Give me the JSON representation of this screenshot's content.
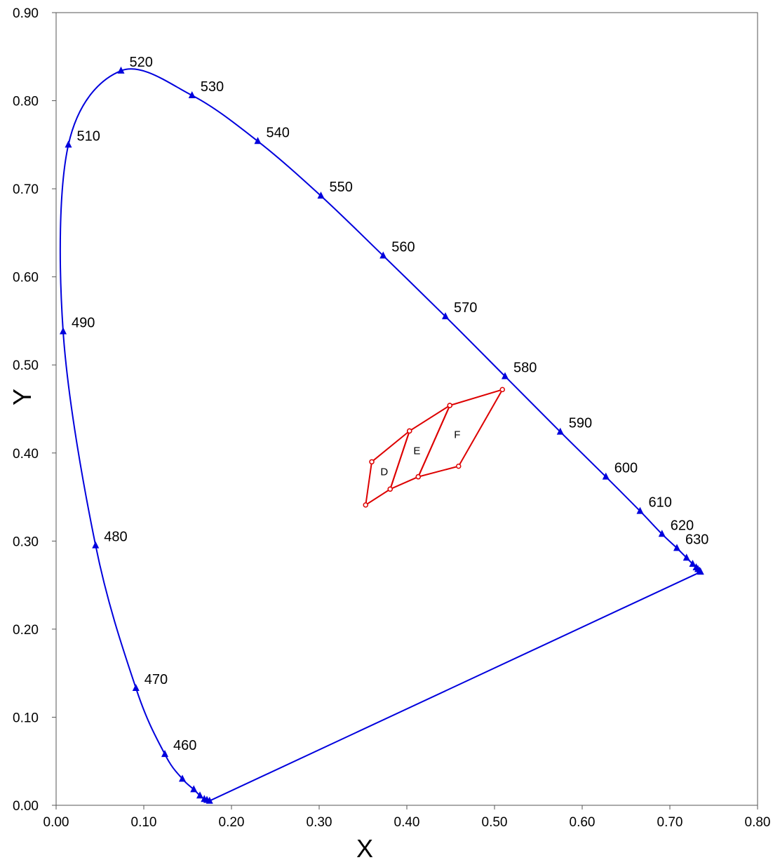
{
  "chart_data": {
    "type": "line",
    "title": "",
    "xlabel": "X",
    "ylabel": "Y",
    "xlim": [
      0.0,
      0.8
    ],
    "ylim": [
      0.0,
      0.9
    ],
    "x_ticks": [
      "0.00",
      "0.10",
      "0.20",
      "0.30",
      "0.40",
      "0.50",
      "0.60",
      "0.70",
      "0.80"
    ],
    "y_ticks": [
      "0.00",
      "0.10",
      "0.20",
      "0.30",
      "0.40",
      "0.50",
      "0.60",
      "0.70",
      "0.80",
      "0.90"
    ],
    "grid": false,
    "legend": "none",
    "series": [
      {
        "color": "#0000dd",
        "marker": "triangle",
        "points": [
          {
            "x": 0.175,
            "y": 0.005
          },
          {
            "x": 0.172,
            "y": 0.006
          },
          {
            "x": 0.169,
            "y": 0.007
          },
          {
            "x": 0.164,
            "y": 0.011
          },
          {
            "x": 0.157,
            "y": 0.018
          },
          {
            "x": 0.144,
            "y": 0.03
          },
          {
            "x": 0.124,
            "y": 0.058,
            "label": "460"
          },
          {
            "x": 0.091,
            "y": 0.133,
            "label": "470"
          },
          {
            "x": 0.045,
            "y": 0.295,
            "label": "480"
          },
          {
            "x": 0.008,
            "y": 0.538,
            "label": "490"
          },
          {
            "x": 0.014,
            "y": 0.75,
            "label": "510"
          },
          {
            "x": 0.074,
            "y": 0.834,
            "label": "520"
          },
          {
            "x": 0.155,
            "y": 0.806,
            "label": "530"
          },
          {
            "x": 0.23,
            "y": 0.754,
            "label": "540"
          },
          {
            "x": 0.302,
            "y": 0.692,
            "label": "550"
          },
          {
            "x": 0.373,
            "y": 0.624,
            "label": "560"
          },
          {
            "x": 0.444,
            "y": 0.555,
            "label": "570"
          },
          {
            "x": 0.512,
            "y": 0.487,
            "label": "580"
          },
          {
            "x": 0.575,
            "y": 0.424,
            "label": "590"
          },
          {
            "x": 0.627,
            "y": 0.373,
            "label": "600"
          },
          {
            "x": 0.666,
            "y": 0.334,
            "label": "610"
          },
          {
            "x": 0.691,
            "y": 0.308,
            "label": "620"
          },
          {
            "x": 0.708,
            "y": 0.292,
            "label": "630"
          },
          {
            "x": 0.719,
            "y": 0.281
          },
          {
            "x": 0.726,
            "y": 0.274
          },
          {
            "x": 0.73,
            "y": 0.27
          },
          {
            "x": 0.732,
            "y": 0.268
          },
          {
            "x": 0.734,
            "y": 0.266
          },
          {
            "x": 0.735,
            "y": 0.265
          }
        ]
      }
    ],
    "regions": [
      {
        "label": "D",
        "color": "#dd0000",
        "vertices": [
          {
            "x": 0.353,
            "y": 0.341
          },
          {
            "x": 0.36,
            "y": 0.39
          },
          {
            "x": 0.403,
            "y": 0.425
          },
          {
            "x": 0.381,
            "y": 0.359
          }
        ]
      },
      {
        "label": "E",
        "color": "#dd0000",
        "vertices": [
          {
            "x": 0.381,
            "y": 0.359
          },
          {
            "x": 0.403,
            "y": 0.425
          },
          {
            "x": 0.449,
            "y": 0.454
          },
          {
            "x": 0.413,
            "y": 0.373
          }
        ]
      },
      {
        "label": "F",
        "color": "#dd0000",
        "vertices": [
          {
            "x": 0.413,
            "y": 0.373
          },
          {
            "x": 0.449,
            "y": 0.454
          },
          {
            "x": 0.509,
            "y": 0.472
          },
          {
            "x": 0.459,
            "y": 0.385
          }
        ]
      }
    ]
  }
}
